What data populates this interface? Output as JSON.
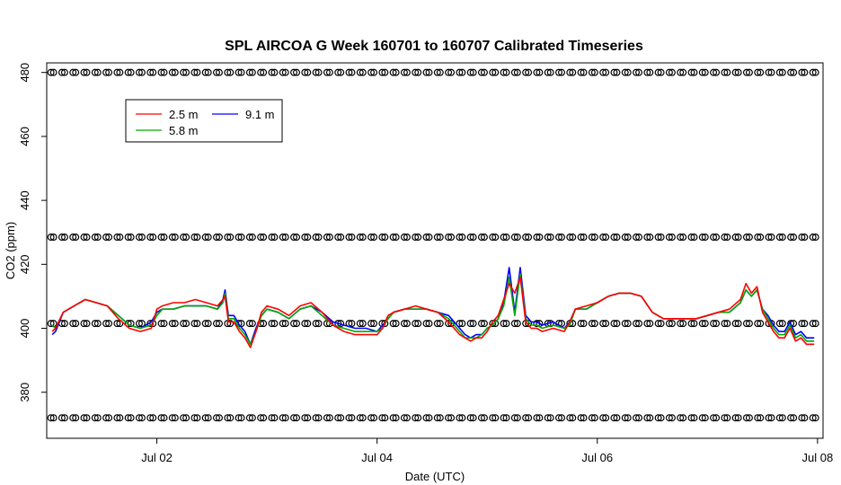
{
  "chart_data": {
    "type": "line",
    "title": "SPL AIRCOA G  Week 160701 to 160707  Calibrated Timeseries",
    "xlabel": "Date (UTC)",
    "ylabel": "CO2 (ppm)",
    "x_unit": "days since Jul 01",
    "xlim": [
      0.0,
      7.05
    ],
    "ylim": [
      365.6,
      483.0
    ],
    "x_ticks": [
      {
        "value": 1,
        "label": "Jul 02"
      },
      {
        "value": 3,
        "label": "Jul 04"
      },
      {
        "value": 5,
        "label": "Jul 06"
      },
      {
        "value": 7,
        "label": "Jul 08"
      }
    ],
    "y_ticks": [
      {
        "value": 380,
        "label": "380"
      },
      {
        "value": 400,
        "label": "400"
      },
      {
        "value": 420,
        "label": "420"
      },
      {
        "value": 440,
        "label": "440"
      },
      {
        "value": 460,
        "label": "460"
      },
      {
        "value": 480,
        "label": "480"
      }
    ],
    "legend": {
      "position": "top-left",
      "entries": [
        {
          "name": "2.5 m",
          "color": "#ff0000"
        },
        {
          "name": "5.8 m",
          "color": "#00aa00"
        },
        {
          "name": "9.1 m",
          "color": "#0000ff"
        }
      ]
    },
    "calibration_points": {
      "marker": "open-circle",
      "levels": [
        372.0,
        401.5,
        428.5,
        480.0
      ],
      "x_start": 0.05,
      "x_end": 6.97,
      "count": 70
    },
    "series": [
      {
        "name": "9.1 m",
        "color": "#0000ff",
        "x": [
          0.05,
          0.08,
          0.15,
          0.25,
          0.35,
          0.45,
          0.55,
          0.65,
          0.75,
          0.85,
          0.95,
          1.0,
          1.05,
          1.15,
          1.25,
          1.35,
          1.45,
          1.55,
          1.6,
          1.62,
          1.65,
          1.7,
          1.75,
          1.8,
          1.85,
          1.9,
          1.95,
          2.0,
          2.1,
          2.2,
          2.3,
          2.4,
          2.5,
          2.6,
          2.7,
          2.8,
          2.9,
          3.0,
          3.05,
          3.1,
          3.15,
          3.25,
          3.35,
          3.45,
          3.55,
          3.65,
          3.75,
          3.8,
          3.85,
          3.9,
          3.95,
          4.0,
          4.05,
          4.1,
          4.15,
          4.2,
          4.25,
          4.3,
          4.35,
          4.4,
          4.45,
          4.5,
          4.6,
          4.7,
          4.75,
          4.8,
          4.9,
          5.0,
          5.1,
          5.2,
          5.3,
          5.4,
          5.5,
          5.6,
          5.7,
          5.8,
          5.9,
          6.0,
          6.1,
          6.2,
          6.3,
          6.35,
          6.4,
          6.45,
          6.5,
          6.55,
          6.6,
          6.65,
          6.7,
          6.75,
          6.8,
          6.85,
          6.9,
          6.97
        ],
        "values": [
          398,
          399,
          405,
          407,
          409,
          408,
          407,
          404,
          401,
          400,
          402,
          405,
          406,
          406,
          407,
          407,
          407,
          406,
          409,
          412,
          404,
          404,
          401,
          399,
          395,
          400,
          404,
          406,
          405,
          403,
          406,
          407,
          405,
          402,
          401,
          400,
          400,
          399,
          401,
          403,
          405,
          406,
          406,
          406,
          405,
          404,
          400,
          398,
          397,
          398,
          398,
          400,
          401,
          403,
          408,
          419,
          405,
          419,
          404,
          402,
          402,
          401,
          402,
          400,
          402,
          406,
          406,
          408,
          410,
          411,
          411,
          410,
          405,
          403,
          403,
          403,
          403,
          404,
          405,
          405,
          408,
          412,
          410,
          412,
          406,
          404,
          401,
          399,
          399,
          402,
          398,
          399,
          397,
          397
        ]
      },
      {
        "name": "5.8 m",
        "color": "#00aa00",
        "x": [
          0.05,
          0.08,
          0.15,
          0.25,
          0.35,
          0.45,
          0.55,
          0.65,
          0.75,
          0.85,
          0.95,
          1.0,
          1.05,
          1.15,
          1.25,
          1.35,
          1.45,
          1.55,
          1.6,
          1.62,
          1.65,
          1.7,
          1.75,
          1.8,
          1.85,
          1.9,
          1.95,
          2.0,
          2.1,
          2.2,
          2.3,
          2.4,
          2.5,
          2.6,
          2.7,
          2.8,
          2.9,
          3.0,
          3.05,
          3.1,
          3.15,
          3.25,
          3.35,
          3.45,
          3.55,
          3.65,
          3.75,
          3.8,
          3.85,
          3.9,
          3.95,
          4.0,
          4.05,
          4.1,
          4.15,
          4.2,
          4.25,
          4.3,
          4.35,
          4.4,
          4.45,
          4.5,
          4.6,
          4.7,
          4.75,
          4.8,
          4.9,
          5.0,
          5.1,
          5.2,
          5.3,
          5.4,
          5.5,
          5.6,
          5.7,
          5.8,
          5.9,
          6.0,
          6.1,
          6.2,
          6.3,
          6.35,
          6.4,
          6.45,
          6.5,
          6.55,
          6.6,
          6.65,
          6.7,
          6.75,
          6.8,
          6.85,
          6.9,
          6.97
        ],
        "values": [
          401,
          400,
          405,
          407,
          409,
          408,
          407,
          404,
          401,
          400,
          401,
          404,
          406,
          406,
          407,
          407,
          407,
          406,
          408,
          411,
          403,
          403,
          400,
          398,
          395,
          399,
          404,
          406,
          405,
          403,
          406,
          407,
          404,
          401,
          400,
          399,
          399,
          399,
          400,
          403,
          405,
          406,
          406,
          406,
          405,
          403,
          399,
          397,
          397,
          397,
          398,
          400,
          401,
          403,
          407,
          416,
          404,
          417,
          403,
          401,
          401,
          400,
          401,
          400,
          401,
          406,
          406,
          408,
          410,
          411,
          411,
          410,
          405,
          403,
          403,
          403,
          403,
          404,
          405,
          405,
          408,
          412,
          410,
          412,
          406,
          403,
          400,
          398,
          398,
          401,
          397,
          398,
          396,
          396
        ]
      },
      {
        "name": "2.5 m",
        "color": "#ff0000",
        "x": [
          0.05,
          0.08,
          0.15,
          0.25,
          0.35,
          0.45,
          0.55,
          0.65,
          0.75,
          0.85,
          0.95,
          1.0,
          1.05,
          1.15,
          1.25,
          1.35,
          1.45,
          1.55,
          1.6,
          1.62,
          1.65,
          1.7,
          1.75,
          1.8,
          1.85,
          1.9,
          1.95,
          2.0,
          2.1,
          2.2,
          2.3,
          2.4,
          2.5,
          2.6,
          2.7,
          2.8,
          2.9,
          3.0,
          3.05,
          3.1,
          3.15,
          3.25,
          3.35,
          3.45,
          3.55,
          3.65,
          3.75,
          3.8,
          3.85,
          3.9,
          3.95,
          4.0,
          4.05,
          4.1,
          4.15,
          4.2,
          4.25,
          4.3,
          4.35,
          4.4,
          4.45,
          4.5,
          4.6,
          4.7,
          4.75,
          4.8,
          4.9,
          5.0,
          5.1,
          5.2,
          5.3,
          5.4,
          5.5,
          5.6,
          5.7,
          5.8,
          5.9,
          6.0,
          6.1,
          6.2,
          6.3,
          6.35,
          6.4,
          6.45,
          6.5,
          6.55,
          6.6,
          6.65,
          6.7,
          6.75,
          6.8,
          6.85,
          6.9,
          6.97
        ],
        "values": [
          399,
          400,
          405,
          407,
          409,
          408,
          407,
          403,
          400,
          399,
          400,
          406,
          407,
          408,
          408,
          409,
          408,
          407,
          409,
          410,
          402,
          402,
          399,
          397,
          394,
          399,
          405,
          407,
          406,
          404,
          407,
          408,
          405,
          401,
          399,
          398,
          398,
          398,
          400,
          404,
          405,
          406,
          407,
          406,
          405,
          402,
          398,
          397,
          396,
          397,
          397,
          399,
          402,
          404,
          409,
          414,
          411,
          416,
          402,
          400,
          400,
          399,
          400,
          399,
          402,
          406,
          407,
          408,
          410,
          411,
          411,
          410,
          405,
          403,
          403,
          403,
          403,
          404,
          405,
          406,
          409,
          414,
          411,
          413,
          405,
          402,
          399,
          397,
          397,
          400,
          396,
          397,
          395,
          395
        ]
      }
    ]
  }
}
